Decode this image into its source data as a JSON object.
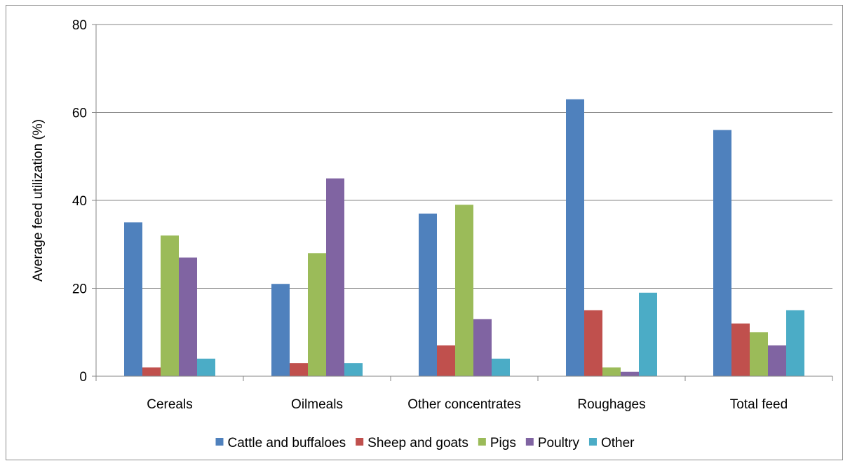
{
  "chart_data": {
    "type": "bar",
    "title": "",
    "xlabel": "",
    "ylabel": "Average feed utilization (%)",
    "ylim": [
      0,
      80
    ],
    "yticks": [
      0,
      20,
      40,
      60,
      80
    ],
    "grid": true,
    "legend_position": "bottom",
    "categories": [
      "Cereals",
      "Oilmeals",
      "Other concentrates",
      "Roughages",
      "Total feed"
    ],
    "series": [
      {
        "name": "Cattle and buffaloes",
        "color": "#4F81BD",
        "values": [
          35,
          21,
          37,
          63,
          56
        ]
      },
      {
        "name": "Sheep and goats",
        "color": "#C0504D",
        "values": [
          2,
          3,
          7,
          15,
          12
        ]
      },
      {
        "name": "Pigs",
        "color": "#9BBB59",
        "values": [
          32,
          28,
          39,
          2,
          10
        ]
      },
      {
        "name": "Poultry",
        "color": "#8064A2",
        "values": [
          27,
          45,
          13,
          1,
          7
        ]
      },
      {
        "name": "Other",
        "color": "#4BACC6",
        "values": [
          4,
          3,
          4,
          19,
          15
        ]
      }
    ]
  }
}
